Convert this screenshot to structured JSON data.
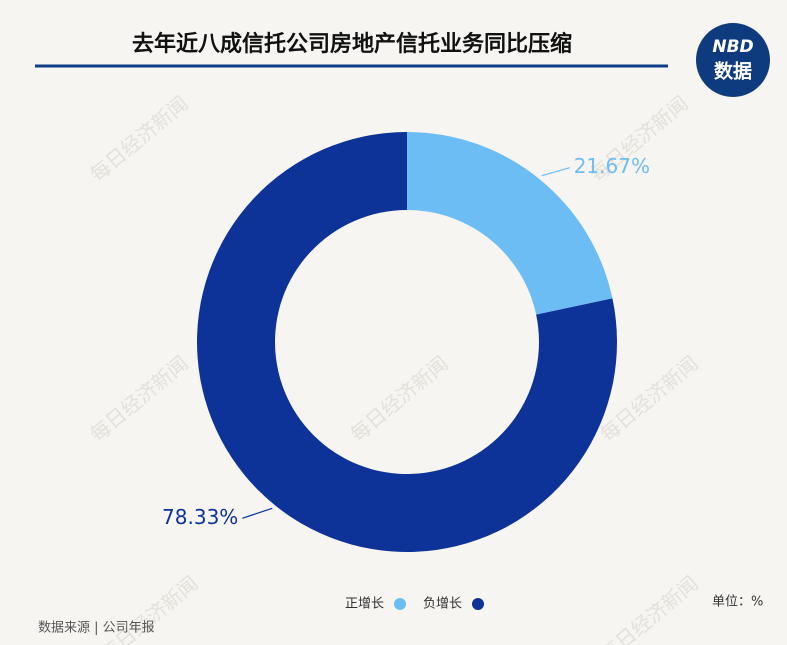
{
  "chart_data": {
    "type": "donut",
    "title": "去年近八成信托公司房地产信托业务同比压缩",
    "categories": [
      "正增长",
      "负增长"
    ],
    "values": [
      21.67,
      78.33
    ],
    "value_labels": [
      "21.67%",
      "78.33%"
    ],
    "colors": [
      "#6dbdf5",
      "#0d3399"
    ],
    "unit": "单位：%",
    "source": "数据来源 | 公司年报",
    "logo": {
      "top": "NBD",
      "bottom": "数据"
    },
    "watermark": "每日经济新闻"
  }
}
